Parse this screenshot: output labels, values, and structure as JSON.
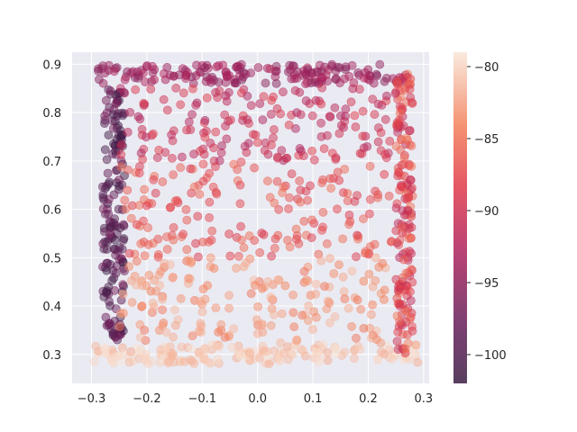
{
  "chart_data": {
    "type": "scatter",
    "title": "",
    "xlabel": "",
    "ylabel": "",
    "xlim": [
      -0.335,
      0.31
    ],
    "ylim": [
      0.24,
      0.925
    ],
    "xticks": [
      -0.3,
      -0.2,
      -0.1,
      0.0,
      0.1,
      0.2,
      0.3
    ],
    "xtick_labels": [
      "−0.3",
      "−0.2",
      "−0.1",
      "0.0",
      "0.1",
      "0.2",
      "0.3"
    ],
    "yticks": [
      0.3,
      0.4,
      0.5,
      0.6,
      0.7,
      0.8,
      0.9
    ],
    "ytick_labels": [
      "0.3",
      "0.4",
      "0.5",
      "0.6",
      "0.7",
      "0.8",
      "0.9"
    ],
    "grid": true,
    "colorbar": {
      "range": [
        -102,
        -79
      ],
      "ticks": [
        -80,
        -85,
        -90,
        -95,
        -100
      ],
      "tick_labels": [
        "−80",
        "−85",
        "−90",
        "−95",
        "−100"
      ],
      "colormap": "rocket",
      "placement": "right"
    },
    "series": [
      {
        "region": "top-edge",
        "x_range": [
          -0.29,
          0.27
        ],
        "y_range": [
          0.86,
          0.9
        ],
        "value_range": [
          -96,
          -92
        ]
      },
      {
        "region": "left-column",
        "x_range": [
          -0.28,
          -0.24
        ],
        "y_range": [
          0.33,
          0.85
        ],
        "value_range": [
          -102,
          -96
        ]
      },
      {
        "region": "bottom-edge",
        "x_range": [
          -0.3,
          0.29
        ],
        "y_range": [
          0.28,
          0.32
        ],
        "value_range": [
          -82,
          -79
        ]
      },
      {
        "region": "right-edge",
        "x_range": [
          0.25,
          0.28
        ],
        "y_range": [
          0.3,
          0.88
        ],
        "value_range": [
          -92,
          -84
        ]
      },
      {
        "region": "upper-interior",
        "x_range": [
          -0.25,
          0.25
        ],
        "y_range": [
          0.7,
          0.86
        ],
        "value_range": [
          -93,
          -88
        ]
      },
      {
        "region": "middle-interior",
        "x_range": [
          -0.25,
          0.25
        ],
        "y_range": [
          0.5,
          0.7
        ],
        "value_range": [
          -89,
          -85
        ]
      },
      {
        "region": "lower-interior",
        "x_range": [
          -0.25,
          0.25
        ],
        "y_range": [
          0.32,
          0.5
        ],
        "value_range": [
          -85,
          -81
        ]
      }
    ]
  },
  "colors": {
    "axes_background": "#eaeaf2",
    "grid": "#ffffff",
    "text": "#262626"
  }
}
